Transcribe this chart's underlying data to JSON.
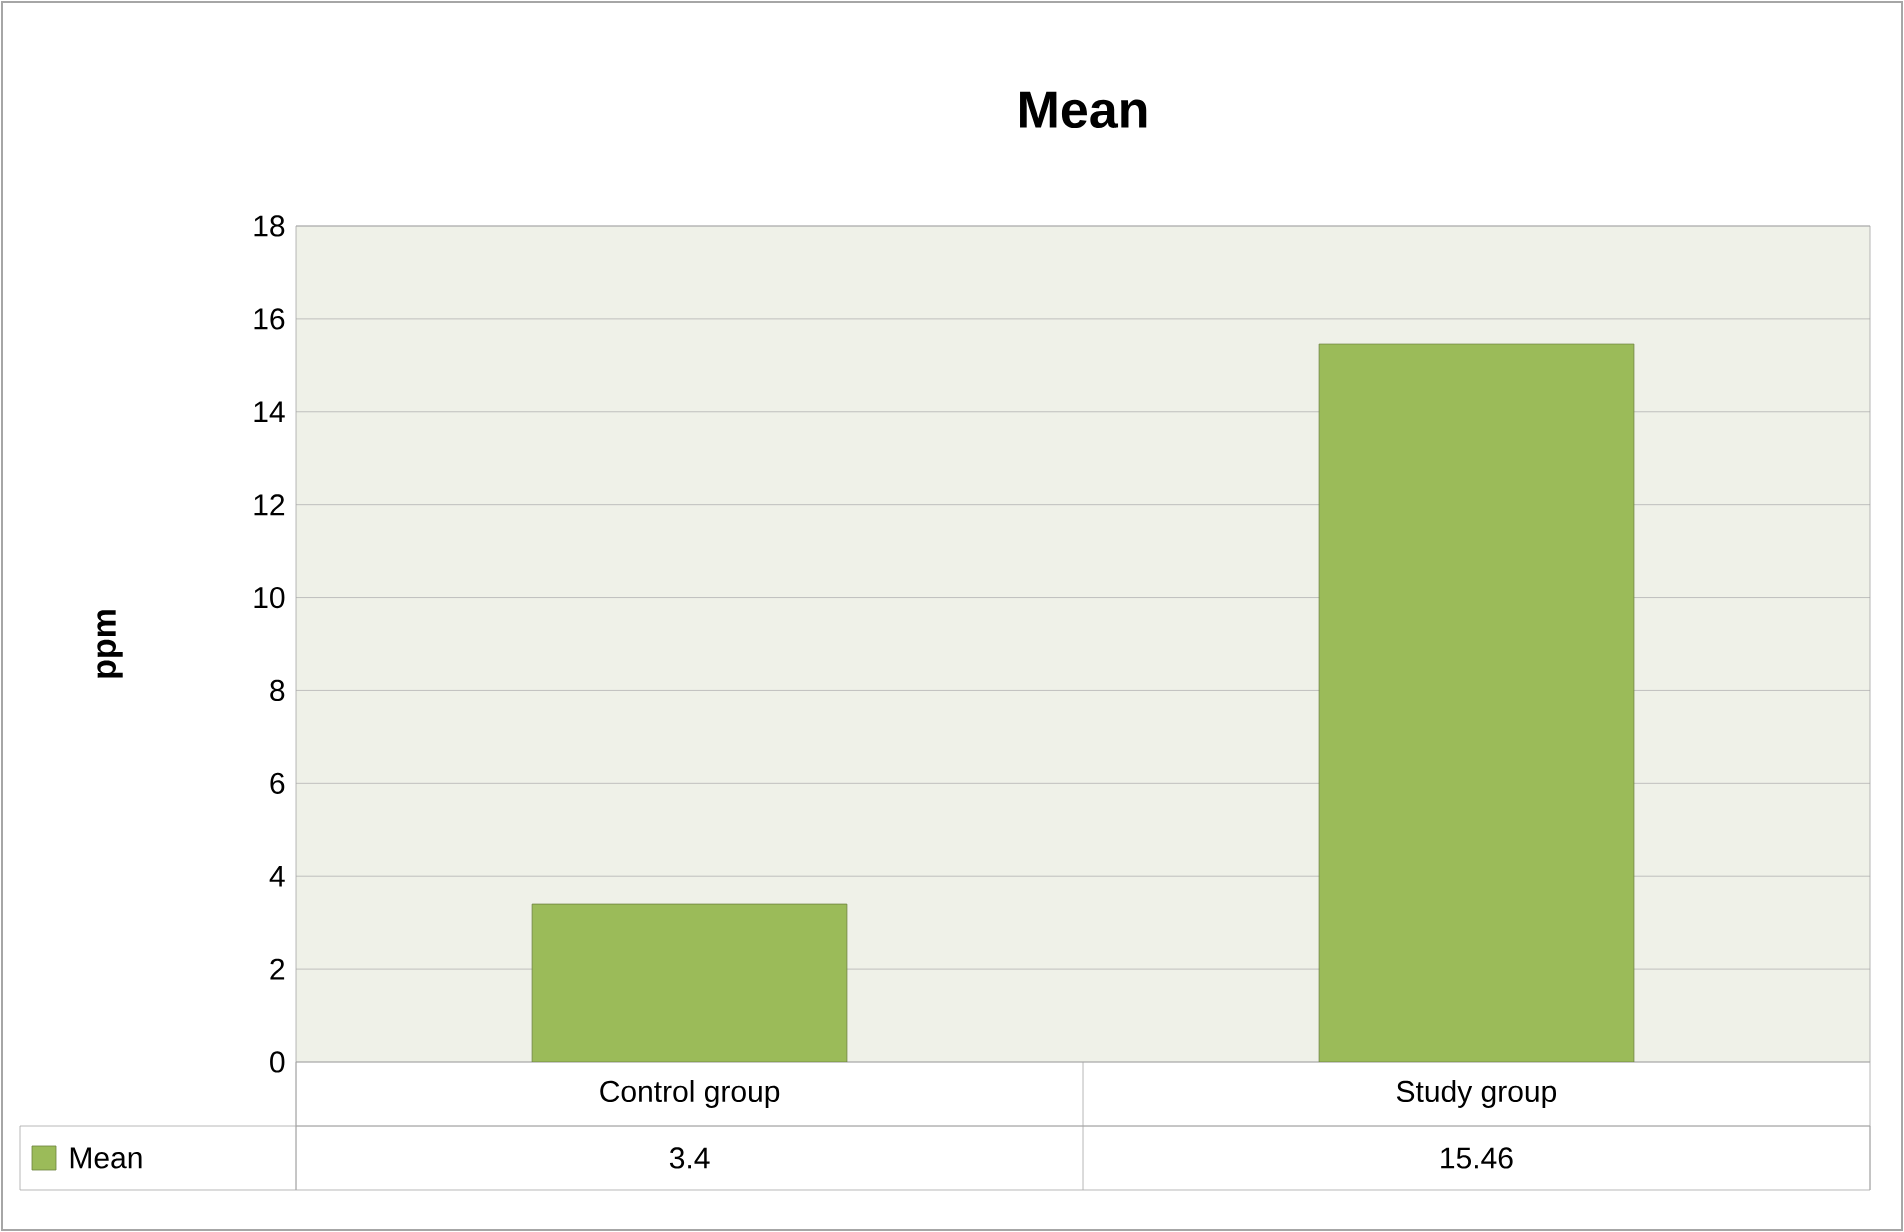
{
  "chart_data": {
    "type": "bar",
    "title": "Mean",
    "ylabel": "ppm",
    "categories": [
      "Control group",
      "Study group"
    ],
    "series": [
      {
        "name": "Mean",
        "color": "#9bbb59",
        "values": [
          3.4,
          15.46
        ]
      }
    ],
    "ylim": [
      0,
      18
    ],
    "yticks": [
      0,
      2,
      4,
      6,
      8,
      10,
      12,
      14,
      16,
      18
    ],
    "grid": "y",
    "legend": "bottom",
    "data_labels": true
  }
}
